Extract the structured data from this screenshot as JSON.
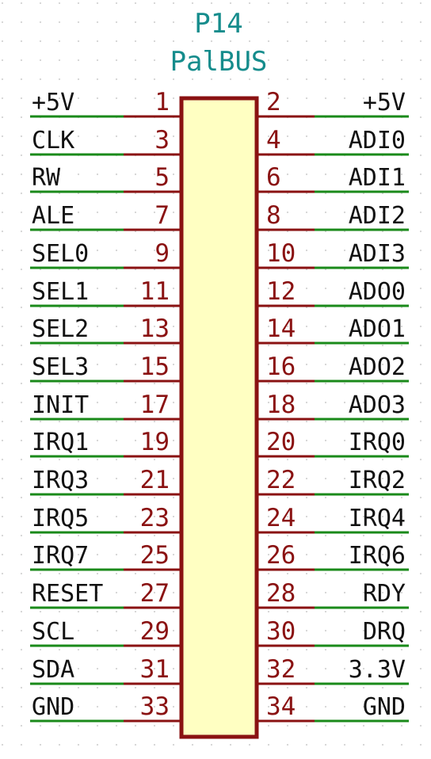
{
  "component": {
    "reference": "P14",
    "value": "PalBUS"
  },
  "pins": [
    {
      "left_number": "1",
      "left_name": "+5V",
      "right_number": "2",
      "right_name": "+5V"
    },
    {
      "left_number": "3",
      "left_name": "CLK",
      "right_number": "4",
      "right_name": "ADI0"
    },
    {
      "left_number": "5",
      "left_name": "RW",
      "right_number": "6",
      "right_name": "ADI1"
    },
    {
      "left_number": "7",
      "left_name": "ALE",
      "right_number": "8",
      "right_name": "ADI2"
    },
    {
      "left_number": "9",
      "left_name": "SEL0",
      "right_number": "10",
      "right_name": "ADI3"
    },
    {
      "left_number": "11",
      "left_name": "SEL1",
      "right_number": "12",
      "right_name": "ADO0"
    },
    {
      "left_number": "13",
      "left_name": "SEL2",
      "right_number": "14",
      "right_name": "ADO1"
    },
    {
      "left_number": "15",
      "left_name": "SEL3",
      "right_number": "16",
      "right_name": "ADO2"
    },
    {
      "left_number": "17",
      "left_name": "INIT",
      "right_number": "18",
      "right_name": "ADO3"
    },
    {
      "left_number": "19",
      "left_name": "IRQ1",
      "right_number": "20",
      "right_name": "IRQ0"
    },
    {
      "left_number": "21",
      "left_name": "IRQ3",
      "right_number": "22",
      "right_name": "IRQ2"
    },
    {
      "left_number": "23",
      "left_name": "IRQ5",
      "right_number": "24",
      "right_name": "IRQ4"
    },
    {
      "left_number": "25",
      "left_name": "IRQ7",
      "right_number": "26",
      "right_name": "IRQ6"
    },
    {
      "left_number": "27",
      "left_name": "RESET",
      "right_number": "28",
      "right_name": "RDY"
    },
    {
      "left_number": "29",
      "left_name": "SCL",
      "right_number": "30",
      "right_name": "DRQ"
    },
    {
      "left_number": "31",
      "left_name": "SDA",
      "right_number": "32",
      "right_name": "3.3V"
    },
    {
      "left_number": "33",
      "left_name": "GND",
      "right_number": "34",
      "right_name": "GND"
    }
  ],
  "colors": {
    "body_fill": "#ffffc2",
    "body_outline": "#8a1212",
    "pin_line": "#8a1212",
    "wire": "#1a8a1a",
    "dot_grid": "#d4d4d4"
  }
}
